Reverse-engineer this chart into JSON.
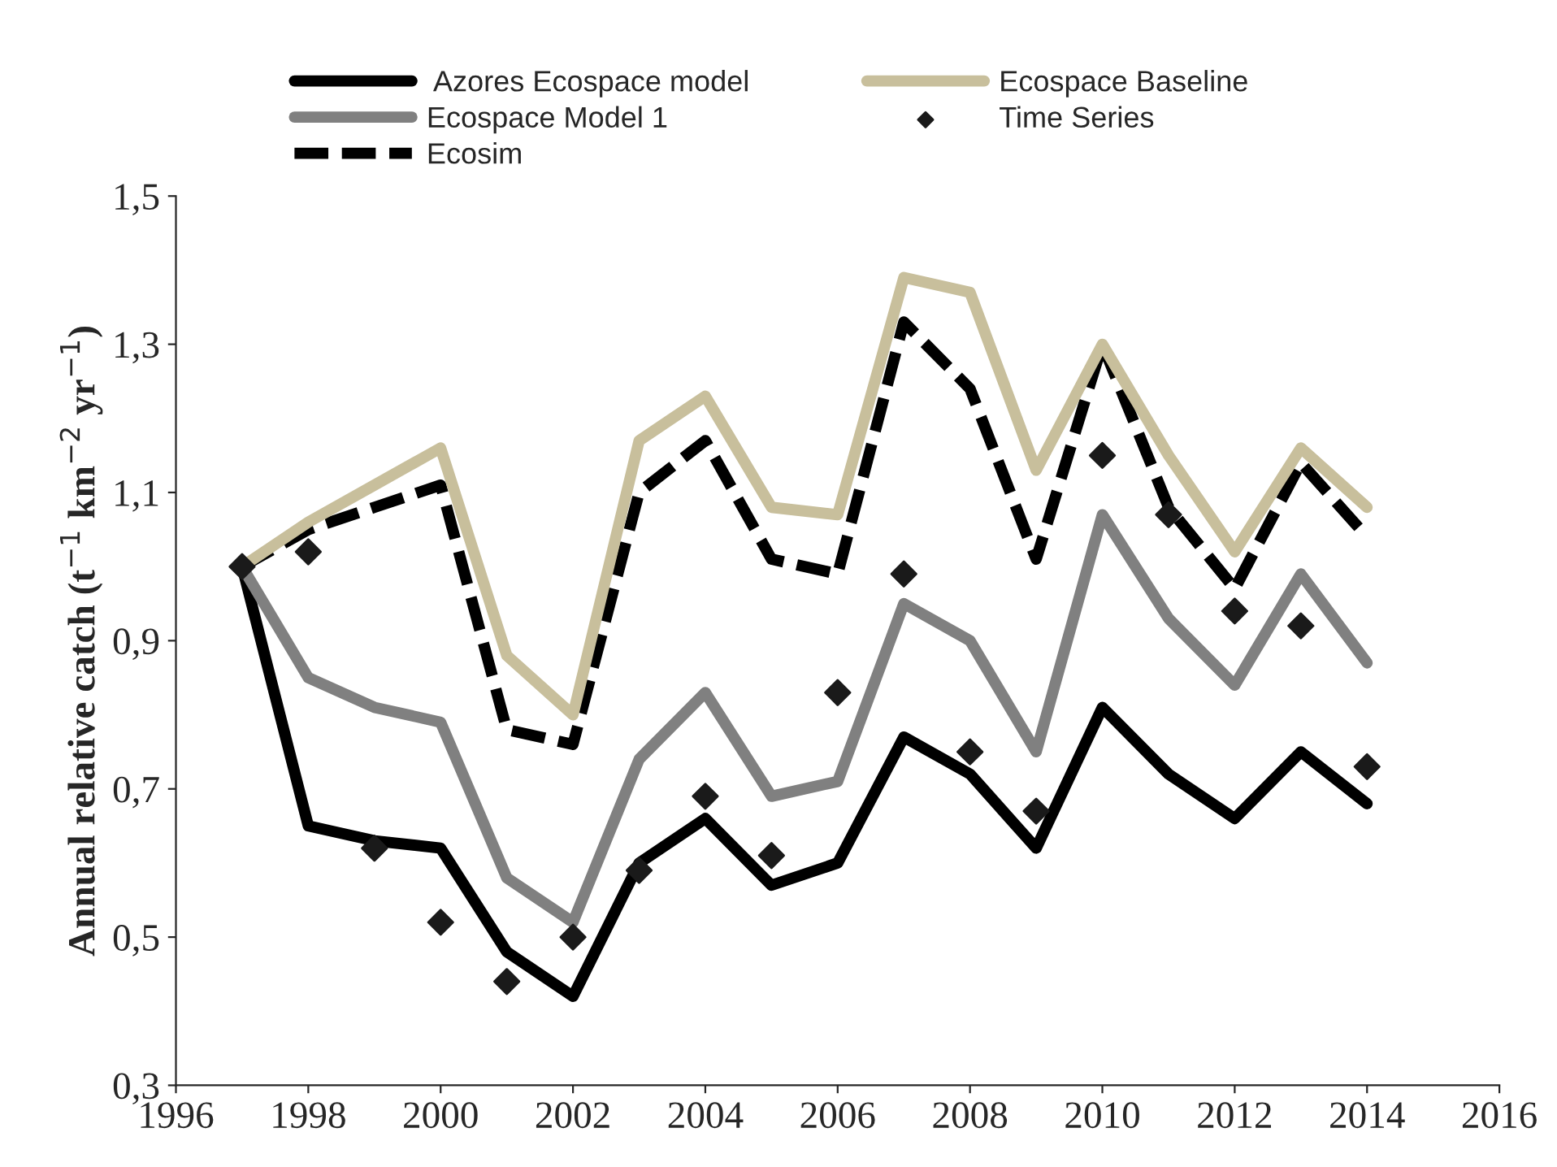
{
  "chart_data": {
    "type": "line",
    "ylabel": "Annual relative catch (t$^{−1}$ km$^{−2}$ yr$^{−1}$)",
    "x": [
      1997,
      1998,
      1999,
      2000,
      2001,
      2002,
      2003,
      2004,
      2005,
      2006,
      2007,
      2008,
      2009,
      2010,
      2011,
      2012,
      2013,
      2014
    ],
    "xlim": [
      1996,
      2016
    ],
    "xticks": [
      1996,
      1998,
      2000,
      2002,
      2004,
      2006,
      2008,
      2010,
      2012,
      2014,
      2016
    ],
    "ylim": [
      0.3,
      1.5
    ],
    "yticks": [
      {
        "value": 0.3,
        "label": "0,3"
      },
      {
        "value": 0.5,
        "label": "0,5"
      },
      {
        "value": 0.7,
        "label": "0,7"
      },
      {
        "value": 0.9,
        "label": "0,9"
      },
      {
        "value": 1.1,
        "label": "1,1"
      },
      {
        "value": 1.3,
        "label": "1,3"
      },
      {
        "value": 1.5,
        "label": "1,5"
      }
    ],
    "grid": false,
    "legend": "top",
    "series": [
      {
        "name": " Azores Ecospace model",
        "color": "#000000",
        "line_style": "solid",
        "values": [
          1.0,
          0.65,
          0.63,
          0.62,
          0.48,
          0.42,
          0.6,
          0.66,
          0.57,
          0.6,
          0.77,
          0.72,
          0.62,
          0.81,
          0.72,
          0.66,
          0.75,
          0.68
        ]
      },
      {
        "name": "Ecospace Model 1",
        "color": "#808080",
        "line_style": "solid",
        "values": [
          1.0,
          0.85,
          0.81,
          0.79,
          0.58,
          0.52,
          0.74,
          0.83,
          0.69,
          0.71,
          0.95,
          0.9,
          0.75,
          1.07,
          0.93,
          0.84,
          0.99,
          0.87
        ]
      },
      {
        "name": "Ecosim",
        "color": "#000000",
        "line_style": "dashed",
        "values": [
          1.0,
          1.05,
          1.08,
          1.11,
          0.78,
          0.76,
          1.1,
          1.17,
          1.01,
          0.99,
          1.33,
          1.24,
          1.01,
          1.3,
          1.08,
          0.97,
          1.14,
          1.04
        ]
      },
      {
        "name": "Ecospace Baseline",
        "color": "#c8bf9c",
        "line_style": "solid",
        "values": [
          1.0,
          1.06,
          1.11,
          1.16,
          0.88,
          0.8,
          1.17,
          1.23,
          1.08,
          1.07,
          1.39,
          1.37,
          1.13,
          1.3,
          1.15,
          1.02,
          1.16,
          1.08
        ]
      },
      {
        "name": "Time Series",
        "type": "scatter",
        "marker": "diamond",
        "color": "#1a1a1a",
        "values": [
          1.0,
          1.02,
          0.62,
          0.52,
          0.44,
          0.5,
          0.59,
          0.69,
          0.61,
          0.83,
          0.99,
          0.75,
          0.67,
          1.15,
          1.07,
          0.94,
          0.92,
          0.73
        ]
      }
    ]
  }
}
